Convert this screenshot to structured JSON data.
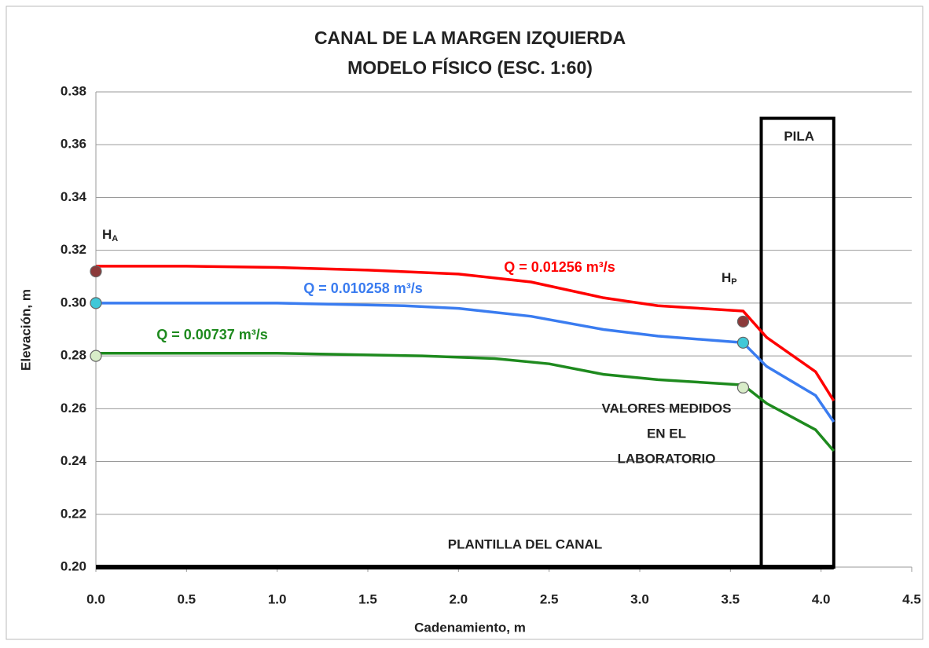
{
  "chart_data": {
    "type": "line",
    "title": [
      "CANAL DE LA MARGEN IZQUIERDA",
      "MODELO FÍSICO (ESC. 1:60)"
    ],
    "x_label": "Cadenamiento, m",
    "y_label": "Elevación, m",
    "xlim": [
      0,
      4.5
    ],
    "ylim": [
      0.2,
      0.38
    ],
    "xticks": [
      {
        "value": 0,
        "label": "0.0"
      },
      0.5,
      {
        "value": 1,
        "label": "1.0"
      },
      1.5,
      {
        "value": 2,
        "label": "2.0"
      },
      2.5,
      {
        "value": 3,
        "label": "3.0"
      },
      3.5,
      {
        "value": 4,
        "label": "4.0"
      },
      4.5
    ],
    "yticks": [
      {
        "value": 0.2,
        "label": "0.20"
      },
      0.22,
      0.24,
      0.26,
      0.28,
      {
        "value": 0.3,
        "label": "0.30"
      },
      0.32,
      0.34,
      0.36,
      0.38
    ],
    "grid": true,
    "series": [
      {
        "name": "Q = 0.01256 m³/s",
        "color": "#ff0000",
        "x": [
          0,
          0.5,
          1.0,
          1.5,
          2.0,
          2.4,
          2.8,
          3.1,
          3.57,
          3.7,
          3.97,
          4.07
        ],
        "values": [
          0.314,
          0.314,
          0.3135,
          0.3125,
          0.311,
          0.308,
          0.302,
          0.299,
          0.297,
          0.287,
          0.274,
          0.263
        ]
      },
      {
        "name": "Q = 0.010258 m³/s",
        "color": "#3a7cf0",
        "x": [
          0,
          1.0,
          1.7,
          2.0,
          2.4,
          2.8,
          3.1,
          3.57,
          3.7,
          3.97,
          4.07
        ],
        "values": [
          0.3,
          0.3,
          0.299,
          0.298,
          0.295,
          0.29,
          0.2875,
          0.285,
          0.276,
          0.265,
          0.255
        ]
      },
      {
        "name": "Q = 0.00737 m³/s",
        "color": "#1e8a1e",
        "x": [
          0,
          1.0,
          1.8,
          2.2,
          2.5,
          2.8,
          3.1,
          3.57,
          3.7,
          3.97,
          4.07
        ],
        "values": [
          0.281,
          0.281,
          0.28,
          0.279,
          0.277,
          0.273,
          0.271,
          0.269,
          0.262,
          0.252,
          0.244
        ]
      }
    ],
    "measured": {
      "name": [
        "VALORES MEDIDOS",
        "EN EL",
        "LABORATORIO"
      ],
      "x": [
        0,
        0,
        0,
        3.57,
        3.57,
        3.57
      ],
      "values": [
        0.312,
        0.3,
        0.28,
        0.293,
        0.285,
        0.268
      ],
      "colors": [
        "#8b3a3a",
        "#40c8d8",
        "#d8ecc8",
        "#8b3a3a",
        "#40c8d8",
        "#d8ecc8"
      ]
    },
    "annotations": [
      {
        "text": "H",
        "sub": "A"
      },
      {
        "text": "H",
        "sub": "P"
      }
    ],
    "pila": {
      "label": "PILA",
      "x": [
        3.67,
        4.07
      ],
      "top": 0.37
    },
    "plantilla": {
      "label": "PLANTILLA DEL CANAL",
      "x": [
        0,
        4.07
      ],
      "value": 0.2
    }
  }
}
